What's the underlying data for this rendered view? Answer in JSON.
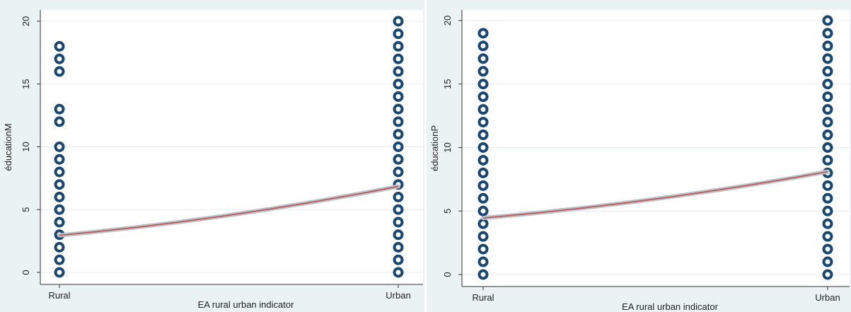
{
  "chart_data": [
    {
      "type": "scatter",
      "xlabel": "EA rural urban indicator",
      "ylabel": "éducationM",
      "categories": [
        "Rural",
        "Urban"
      ],
      "ylim": [
        0,
        20
      ],
      "yticks": [
        0,
        5,
        10,
        15,
        20
      ],
      "grid": true,
      "points": [
        {
          "x": "Rural",
          "y": [
            0,
            1,
            2,
            3,
            4,
            5,
            6,
            7,
            8,
            9,
            10,
            12,
            13,
            16,
            17,
            18
          ]
        },
        {
          "x": "Urban",
          "y": [
            0,
            1,
            2,
            3,
            4,
            5,
            6,
            7,
            8,
            9,
            10,
            11,
            12,
            13,
            14,
            15,
            16,
            17,
            18,
            19,
            20
          ]
        }
      ],
      "fit_line": {
        "x": [
          "Rural",
          "Urban"
        ],
        "y": [
          2.95,
          6.85
        ]
      },
      "marker_color": "#1a4770",
      "fit_color": "#c0504d"
    },
    {
      "type": "scatter",
      "xlabel": "EA rural urban indicator",
      "ylabel": "éducationP",
      "categories": [
        "Rural",
        "Urban"
      ],
      "ylim": [
        0,
        20
      ],
      "yticks": [
        0,
        5,
        10,
        15,
        20
      ],
      "grid": true,
      "points": [
        {
          "x": "Rural",
          "y": [
            0,
            1,
            2,
            3,
            4,
            5,
            6,
            7,
            8,
            9,
            10,
            11,
            12,
            13,
            14,
            15,
            16,
            17,
            18,
            19
          ]
        },
        {
          "x": "Urban",
          "y": [
            0,
            1,
            2,
            3,
            4,
            5,
            6,
            7,
            8,
            9,
            10,
            11,
            12,
            13,
            14,
            15,
            16,
            17,
            18,
            19,
            20
          ]
        }
      ],
      "fit_line": {
        "x": [
          "Rural",
          "Urban"
        ],
        "y": [
          4.45,
          8.1
        ]
      },
      "marker_color": "#1a4770",
      "fit_color": "#c0504d"
    }
  ]
}
